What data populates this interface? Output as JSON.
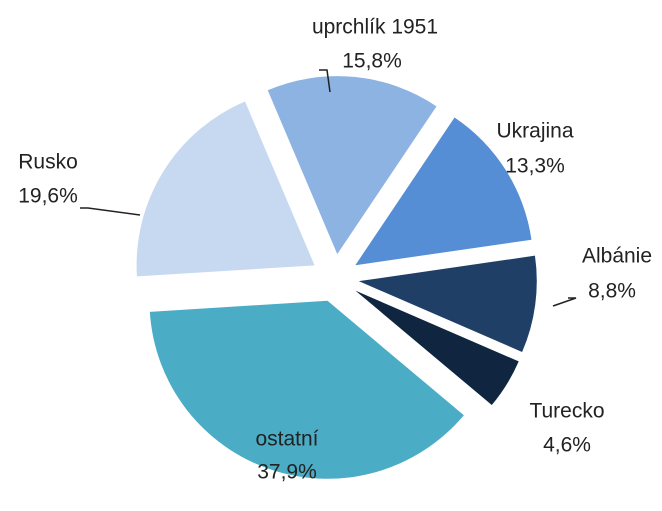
{
  "chart_data": {
    "type": "pie",
    "categories": [
      "uprchlík 1951",
      "Ukrajina",
      "Albánie",
      "Turecko",
      "ostatní",
      "Rusko"
    ],
    "values": [
      15.8,
      13.3,
      8.8,
      4.6,
      37.9,
      19.6
    ],
    "value_labels": [
      "15,8%",
      "13,3%",
      "8,8%",
      "4,6%",
      "37,9%",
      "19,6%"
    ],
    "colors": [
      "#8db3e2",
      "#558ed5",
      "#1f3f66",
      "#10253f",
      "#4bacc6",
      "#c6d9f1"
    ]
  }
}
